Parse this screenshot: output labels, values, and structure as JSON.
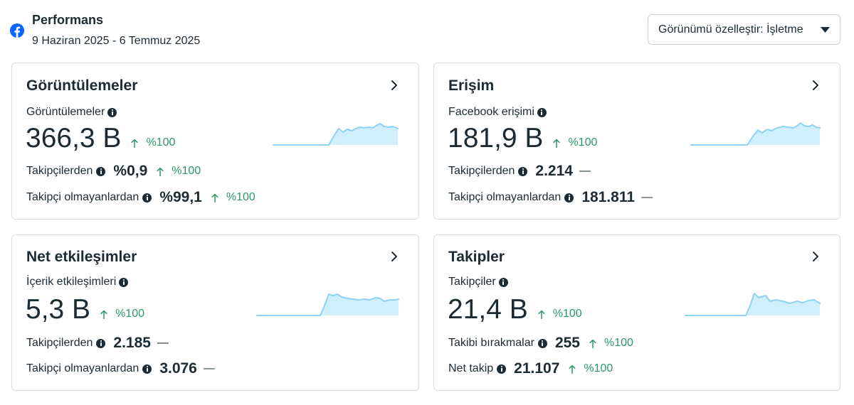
{
  "header": {
    "platform_icon": "facebook-icon",
    "title": "Performans",
    "date_range": "9 Haziran 2025 - 6 Temmuz 2025",
    "customize_button": {
      "label": "Görünümü özelleştir: İşletme",
      "icon": "caret-down-icon"
    }
  },
  "colors": {
    "brand": "#0866ff",
    "positive": "#2a9965",
    "text": "#1c2b33",
    "card_border": "#dadde1",
    "sparkline_line": "#8dd3f3",
    "sparkline_fill": "#cfeffd"
  },
  "icons": {
    "open_details": "chevron-right-icon",
    "info": "info-icon",
    "increase": "arrow-up-icon",
    "trend": "sparkline-chart"
  },
  "cards": [
    {
      "title": "Görüntülemeler",
      "metric_label": "Görüntülemeler",
      "value": "366,3 B",
      "change": "%100",
      "change_icon": "arrow-up-icon",
      "rows": [
        {
          "label": "Takipçilerden",
          "value": "%0,9",
          "change": "%100",
          "change_icon": "arrow-up-icon"
        },
        {
          "label": "Takipçi olmayanlardan",
          "value": "%99,1",
          "change": "%100",
          "change_icon": "arrow-up-icon"
        }
      ]
    },
    {
      "title": "Erişim",
      "metric_label": "Facebook erişimi",
      "value": "181,9 B",
      "change": "%100",
      "change_icon": "arrow-up-icon",
      "rows": [
        {
          "label": "Takipçilerden",
          "value": "2.214",
          "change": "—"
        },
        {
          "label": "Takipçi olmayanlardan",
          "value": "181.811",
          "change": "—"
        }
      ]
    },
    {
      "title": "Net etkileşimler",
      "metric_label": "İçerik etkileşimleri",
      "value": "5,3 B",
      "change": "%100",
      "change_icon": "arrow-up-icon",
      "rows": [
        {
          "label": "Takipçilerden",
          "value": "2.185",
          "change": "—"
        },
        {
          "label": "Takipçi olmayanlardan",
          "value": "3.076",
          "change": "—"
        }
      ]
    },
    {
      "title": "Takipler",
      "metric_label": "Takipçiler",
      "value": "21,4 B",
      "change": "%100",
      "change_icon": "arrow-up-icon",
      "rows": [
        {
          "label": "Takibi bırakmalar",
          "value": "255",
          "change": "%100",
          "change_icon": "arrow-up-icon"
        },
        {
          "label": "Net takip",
          "value": "21.107",
          "change": "%100",
          "change_icon": "arrow-up-icon"
        }
      ]
    }
  ]
}
